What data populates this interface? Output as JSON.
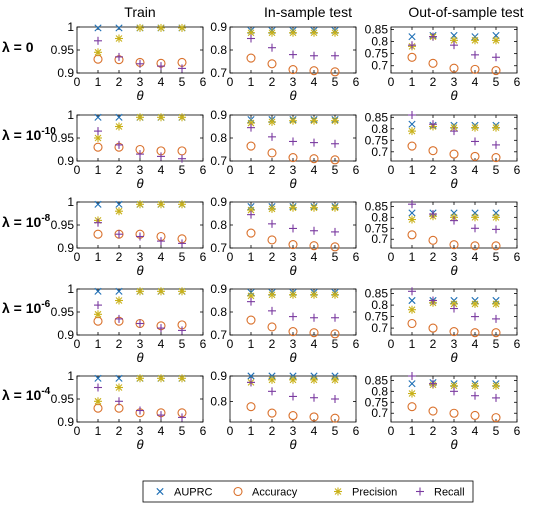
{
  "chart_data": {
    "type": "scatter",
    "columns": [
      "Train",
      "In-sample test",
      "Out-of-sample test"
    ],
    "row_prefix": "λ = ",
    "rows": [
      {
        "base": "0",
        "exp": ""
      },
      {
        "base": "10",
        "exp": "-10"
      },
      {
        "base": "10",
        "exp": "-8"
      },
      {
        "base": "10",
        "exp": "-6"
      },
      {
        "base": "10",
        "exp": "-4"
      }
    ],
    "xlabel": "θ",
    "xlim": [
      0,
      6
    ],
    "xticks": [
      0,
      1,
      2,
      3,
      4,
      5,
      6
    ],
    "x": [
      1,
      2,
      3,
      4,
      5
    ],
    "legend": {
      "position": "bottom",
      "entries": [
        {
          "name": "AUPRC",
          "marker": "x",
          "color": "#1f6fb5"
        },
        {
          "name": "Accuracy",
          "marker": "circle",
          "color": "#d9702b"
        },
        {
          "name": "Precision",
          "marker": "asterisk",
          "color": "#c9b11a"
        },
        {
          "name": "Recall",
          "marker": "plus",
          "color": "#7a3aa0"
        }
      ]
    },
    "panels": [
      [
        {
          "ylim": [
            0.9,
            1
          ],
          "yticks": [
            "0.9",
            "0.95",
            "1"
          ],
          "yvals": [
            0.9,
            0.95,
            1
          ],
          "series": {
            "AUPRC": [
              0.998,
              0.998,
              0.998,
              0.998,
              0.998
            ],
            "Accuracy": [
              0.93,
              0.929,
              0.923,
              0.921,
              0.923
            ],
            "Precision": [
              0.945,
              0.975,
              0.998,
              0.998,
              0.998
            ],
            "Recall": [
              0.97,
              0.935,
              0.92,
              0.915,
              0.91
            ]
          }
        },
        {
          "ylim": [
            0.7,
            0.9
          ],
          "yticks": [
            "0.7",
            "0.8",
            "0.9"
          ],
          "yvals": [
            0.7,
            0.8,
            0.9
          ],
          "series": {
            "AUPRC": [
              0.885,
              0.885,
              0.885,
              0.885,
              0.885
            ],
            "Accuracy": [
              0.765,
              0.74,
              0.715,
              0.71,
              0.705
            ],
            "Precision": [
              0.875,
              0.875,
              0.875,
              0.875,
              0.875
            ],
            "Recall": [
              0.85,
              0.81,
              0.78,
              0.775,
              0.775
            ]
          }
        },
        {
          "ylim": [
            0.67,
            0.86
          ],
          "yticks": [
            "0.7",
            "0.75",
            "0.8",
            "0.85"
          ],
          "yvals": [
            0.7,
            0.75,
            0.8,
            0.85
          ],
          "series": {
            "AUPRC": [
              0.82,
              0.825,
              0.825,
              0.82,
              0.825
            ],
            "Accuracy": [
              0.735,
              0.71,
              0.69,
              0.685,
              0.68
            ],
            "Precision": [
              0.78,
              0.82,
              0.805,
              0.805,
              0.805
            ],
            "Recall": [
              0.785,
              0.82,
              0.785,
              0.745,
              0.735
            ]
          }
        }
      ],
      [
        {
          "ylim": [
            0.9,
            1
          ],
          "yticks": [
            "0.9",
            "0.95",
            "1"
          ],
          "yvals": [
            0.9,
            0.95,
            1
          ],
          "series": {
            "AUPRC": [
              0.995,
              0.995,
              0.995,
              0.995,
              0.995
            ],
            "Accuracy": [
              0.93,
              0.93,
              0.925,
              0.922,
              0.922
            ],
            "Precision": [
              0.95,
              0.975,
              0.995,
              0.995,
              0.995
            ],
            "Recall": [
              0.965,
              0.935,
              0.915,
              0.91,
              0.905
            ]
          }
        },
        {
          "ylim": [
            0.7,
            0.9
          ],
          "yticks": [
            "0.7",
            "0.8",
            "0.9"
          ],
          "yvals": [
            0.7,
            0.8,
            0.9
          ],
          "series": {
            "AUPRC": [
              0.88,
              0.88,
              0.88,
              0.88,
              0.88
            ],
            "Accuracy": [
              0.765,
              0.735,
              0.715,
              0.71,
              0.705
            ],
            "Precision": [
              0.865,
              0.87,
              0.875,
              0.875,
              0.875
            ],
            "Recall": [
              0.845,
              0.805,
              0.785,
              0.78,
              0.775
            ]
          }
        },
        {
          "ylim": [
            0.66,
            0.86
          ],
          "yticks": [
            "0.7",
            "0.75",
            "0.8",
            "0.85"
          ],
          "yvals": [
            0.7,
            0.75,
            0.8,
            0.85
          ],
          "series": {
            "AUPRC": [
              0.82,
              0.815,
              0.815,
              0.815,
              0.815
            ],
            "Accuracy": [
              0.725,
              0.705,
              0.69,
              0.68,
              0.675
            ],
            "Precision": [
              0.79,
              0.81,
              0.805,
              0.805,
              0.805
            ],
            "Recall": [
              0.86,
              0.82,
              0.79,
              0.745,
              0.73
            ]
          }
        }
      ],
      [
        {
          "ylim": [
            0.9,
            1
          ],
          "yticks": [
            "0.9",
            "0.95",
            "1"
          ],
          "yvals": [
            0.9,
            0.95,
            1
          ],
          "series": {
            "AUPRC": [
              0.995,
              0.995,
              0.995,
              0.995,
              0.995
            ],
            "Accuracy": [
              0.93,
              0.93,
              0.93,
              0.925,
              0.92
            ],
            "Precision": [
              0.96,
              0.98,
              0.995,
              0.995,
              0.995
            ],
            "Recall": [
              0.955,
              0.93,
              0.925,
              0.915,
              0.91
            ]
          }
        },
        {
          "ylim": [
            0.7,
            0.9
          ],
          "yticks": [
            "0.7",
            "0.8",
            "0.9"
          ],
          "yvals": [
            0.7,
            0.8,
            0.9
          ],
          "series": {
            "AUPRC": [
              0.88,
              0.88,
              0.88,
              0.88,
              0.88
            ],
            "Accuracy": [
              0.765,
              0.735,
              0.715,
              0.71,
              0.705
            ],
            "Precision": [
              0.865,
              0.87,
              0.875,
              0.875,
              0.875
            ],
            "Recall": [
              0.845,
              0.805,
              0.785,
              0.775,
              0.77
            ]
          }
        },
        {
          "ylim": [
            0.66,
            0.87
          ],
          "yticks": [
            "0.7",
            "0.75",
            "0.8",
            "0.85"
          ],
          "yvals": [
            0.7,
            0.75,
            0.8,
            0.85
          ],
          "series": {
            "AUPRC": [
              0.82,
              0.82,
              0.82,
              0.82,
              0.82
            ],
            "Accuracy": [
              0.72,
              0.695,
              0.675,
              0.67,
              0.67
            ],
            "Precision": [
              0.79,
              0.805,
              0.8,
              0.8,
              0.8
            ],
            "Recall": [
              0.86,
              0.815,
              0.785,
              0.75,
              0.745
            ]
          }
        }
      ],
      [
        {
          "ylim": [
            0.9,
            1
          ],
          "yticks": [
            "0.9",
            "0.95",
            "1"
          ],
          "yvals": [
            0.9,
            0.95,
            1
          ],
          "series": {
            "AUPRC": [
              0.995,
              0.995,
              0.995,
              0.995,
              0.995
            ],
            "Accuracy": [
              0.93,
              0.93,
              0.925,
              0.92,
              0.922
            ],
            "Precision": [
              0.945,
              0.975,
              0.995,
              0.995,
              0.995
            ],
            "Recall": [
              0.965,
              0.935,
              0.925,
              0.915,
              0.91
            ]
          }
        },
        {
          "ylim": [
            0.7,
            0.9
          ],
          "yticks": [
            "0.7",
            "0.8",
            "0.9"
          ],
          "yvals": [
            0.7,
            0.8,
            0.9
          ],
          "series": {
            "AUPRC": [
              0.885,
              0.885,
              0.885,
              0.885,
              0.885
            ],
            "Accuracy": [
              0.765,
              0.735,
              0.715,
              0.71,
              0.705
            ],
            "Precision": [
              0.87,
              0.875,
              0.875,
              0.875,
              0.875
            ],
            "Recall": [
              0.845,
              0.805,
              0.78,
              0.775,
              0.775
            ]
          }
        },
        {
          "ylim": [
            0.67,
            0.87
          ],
          "yticks": [
            "0.7",
            "0.75",
            "0.8",
            "0.85"
          ],
          "yvals": [
            0.7,
            0.75,
            0.8,
            0.85
          ],
          "series": {
            "AUPRC": [
              0.82,
              0.82,
              0.82,
              0.82,
              0.82
            ],
            "Accuracy": [
              0.72,
              0.7,
              0.685,
              0.68,
              0.68
            ],
            "Precision": [
              0.78,
              0.81,
              0.805,
              0.805,
              0.805
            ],
            "Recall": [
              0.86,
              0.82,
              0.785,
              0.75,
              0.74
            ]
          }
        }
      ],
      [
        {
          "ylim": [
            0.9,
            1
          ],
          "yticks": [
            "0.9",
            "0.95",
            "1"
          ],
          "yvals": [
            0.9,
            0.95,
            1
          ],
          "series": {
            "AUPRC": [
              0.995,
              0.995,
              0.995,
              0.995,
              0.995
            ],
            "Accuracy": [
              0.93,
              0.93,
              0.92,
              0.92,
              0.92
            ],
            "Precision": [
              0.945,
              0.975,
              0.995,
              0.995,
              0.995
            ],
            "Recall": [
              0.975,
              0.945,
              0.925,
              0.915,
              0.91
            ]
          }
        },
        {
          "ylim": [
            0.72,
            0.9
          ],
          "yticks": [
            "0.8",
            "0.9"
          ],
          "yvals": [
            0.8,
            0.9
          ],
          "series": {
            "AUPRC": [
              0.9,
              0.9,
              0.9,
              0.9,
              0.9
            ],
            "Accuracy": [
              0.78,
              0.755,
              0.745,
              0.74,
              0.735
            ],
            "Precision": [
              0.875,
              0.885,
              0.885,
              0.885,
              0.885
            ],
            "Recall": [
              0.875,
              0.84,
              0.82,
              0.815,
              0.81
            ]
          }
        },
        {
          "ylim": [
            0.66,
            0.87
          ],
          "yticks": [
            "0.7",
            "0.75",
            "0.8",
            "0.85"
          ],
          "yvals": [
            0.7,
            0.75,
            0.8,
            0.85
          ],
          "series": {
            "AUPRC": [
              0.835,
              0.84,
              0.835,
              0.835,
              0.835
            ],
            "Accuracy": [
              0.73,
              0.71,
              0.7,
              0.69,
              0.68
            ],
            "Precision": [
              0.79,
              0.83,
              0.825,
              0.825,
              0.825
            ],
            "Recall": [
              0.87,
              0.835,
              0.8,
              0.78,
              0.77
            ]
          }
        }
      ]
    ]
  }
}
